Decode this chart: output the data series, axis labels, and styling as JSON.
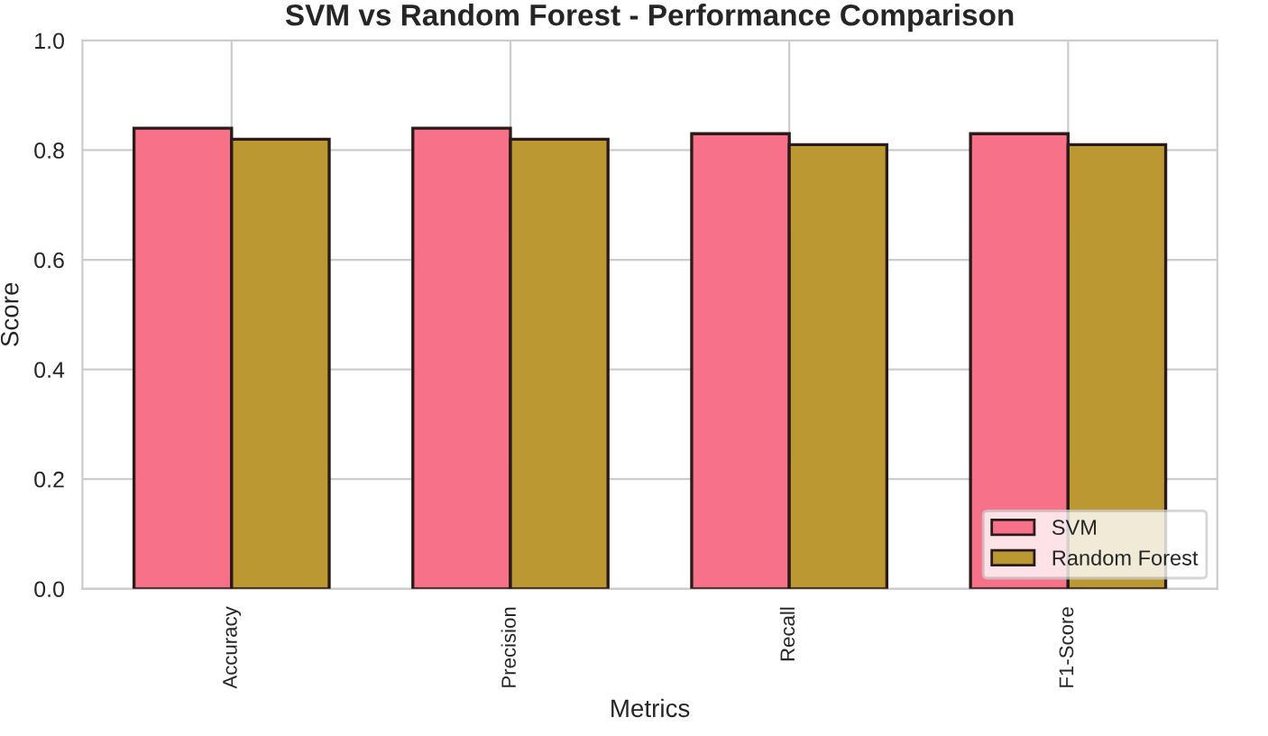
{
  "chart_data": {
    "type": "bar",
    "title": "SVM vs Random Forest - Performance Comparison",
    "xlabel": "Metrics",
    "ylabel": "Score",
    "categories": [
      "Accuracy",
      "Precision",
      "Recall",
      "F1-Score"
    ],
    "series": [
      {
        "name": "SVM",
        "color": "#f77189",
        "values": [
          0.84,
          0.84,
          0.83,
          0.83
        ]
      },
      {
        "name": "Random Forest",
        "color": "#bb9832",
        "values": [
          0.82,
          0.82,
          0.81,
          0.81
        ]
      }
    ],
    "ylim": [
      0,
      1.0
    ],
    "yticks": [
      {
        "value": 0,
        "label": "0.0"
      },
      0.2,
      0.4,
      0.6,
      0.8,
      {
        "value": 1,
        "label": "1.0"
      }
    ],
    "grid": true,
    "legend": "lower right"
  }
}
